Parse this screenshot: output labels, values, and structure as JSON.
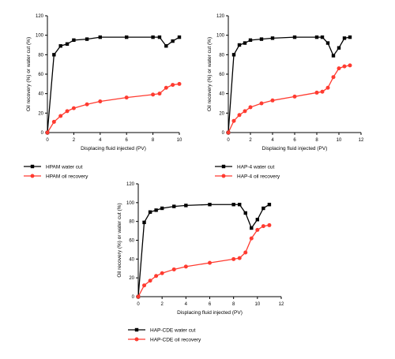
{
  "chart_data": [
    {
      "type": "line",
      "xlabel": "Displacing fluid injected (PV)",
      "ylabel": "Oil recovery (%) or water cut (%)",
      "xlim": [
        0,
        10
      ],
      "ylim": [
        0,
        120
      ],
      "xticks": [
        0,
        2,
        4,
        6,
        8,
        10
      ],
      "yticks": [
        0,
        20,
        40,
        60,
        80,
        100,
        120
      ],
      "grid": false,
      "legend_position": "below",
      "series": [
        {
          "name": "HPAM water cut",
          "color": "#000000",
          "marker": "square",
          "x": [
            0,
            0.5,
            1,
            1.5,
            2,
            3,
            4,
            6,
            8,
            8.5,
            9,
            9.5,
            10
          ],
          "y": [
            0,
            80,
            89,
            91,
            95,
            96,
            98,
            98,
            98,
            98,
            89,
            94,
            98
          ]
        },
        {
          "name": "HPAM oil recovery",
          "color": "#ff3b30",
          "marker": "circle",
          "x": [
            0,
            0.5,
            1,
            1.5,
            2,
            3,
            4,
            6,
            8,
            8.5,
            9,
            9.5,
            10
          ],
          "y": [
            0,
            11,
            17,
            22,
            25,
            29,
            32,
            36,
            39,
            40,
            46,
            49,
            50
          ]
        }
      ]
    },
    {
      "type": "line",
      "xlabel": "Displacing fluid injected (PV)",
      "ylabel": "Oil recovery (%) or water cut (%)",
      "xlim": [
        0,
        12
      ],
      "ylim": [
        0,
        120
      ],
      "xticks": [
        0,
        2,
        4,
        6,
        8,
        10,
        12
      ],
      "yticks": [
        0,
        20,
        40,
        60,
        80,
        100,
        120
      ],
      "grid": false,
      "legend_position": "below",
      "series": [
        {
          "name": "HAP-4 water cut",
          "color": "#000000",
          "marker": "square",
          "x": [
            0,
            0.5,
            1,
            1.5,
            2,
            3,
            4,
            6,
            8,
            8.5,
            9,
            9.5,
            10,
            10.5,
            11
          ],
          "y": [
            0,
            80,
            90,
            92,
            95,
            96,
            97,
            98,
            98,
            98,
            92,
            79,
            87,
            97,
            98
          ]
        },
        {
          "name": "HAP-4 oil recovery",
          "color": "#ff3b30",
          "marker": "circle",
          "x": [
            0,
            0.5,
            1,
            1.5,
            2,
            3,
            4,
            6,
            8,
            8.5,
            9,
            9.5,
            10,
            10.5,
            11
          ],
          "y": [
            0,
            12,
            18,
            22,
            26,
            30,
            33,
            37,
            41,
            42,
            46,
            57,
            66,
            68,
            69
          ]
        }
      ]
    },
    {
      "type": "line",
      "xlabel": "Displacing fluid injected (PV)",
      "ylabel": "Oil recovery (%) or water cut (%)",
      "xlim": [
        0,
        12
      ],
      "ylim": [
        0,
        120
      ],
      "xticks": [
        0,
        2,
        4,
        6,
        8,
        10,
        12
      ],
      "yticks": [
        0,
        20,
        40,
        60,
        80,
        100,
        120
      ],
      "grid": false,
      "legend_position": "below",
      "series": [
        {
          "name": "HAP-CDE water cut",
          "color": "#000000",
          "marker": "square",
          "x": [
            0,
            0.5,
            1,
            1.5,
            2,
            3,
            4,
            6,
            8,
            8.5,
            9,
            9.5,
            10,
            10.5,
            11
          ],
          "y": [
            0,
            79,
            90,
            92,
            94,
            96,
            97,
            98,
            98,
            98,
            89,
            73,
            82,
            94,
            98
          ]
        },
        {
          "name": "HAP-CDE oil recovery",
          "color": "#ff3b30",
          "marker": "circle",
          "x": [
            0,
            0.5,
            1,
            1.5,
            2,
            3,
            4,
            6,
            8,
            8.5,
            9,
            9.5,
            10,
            10.5,
            11
          ],
          "y": [
            0,
            12,
            17,
            22,
            25,
            29,
            32,
            36,
            40,
            41,
            47,
            62,
            71,
            75,
            76
          ]
        }
      ]
    }
  ]
}
